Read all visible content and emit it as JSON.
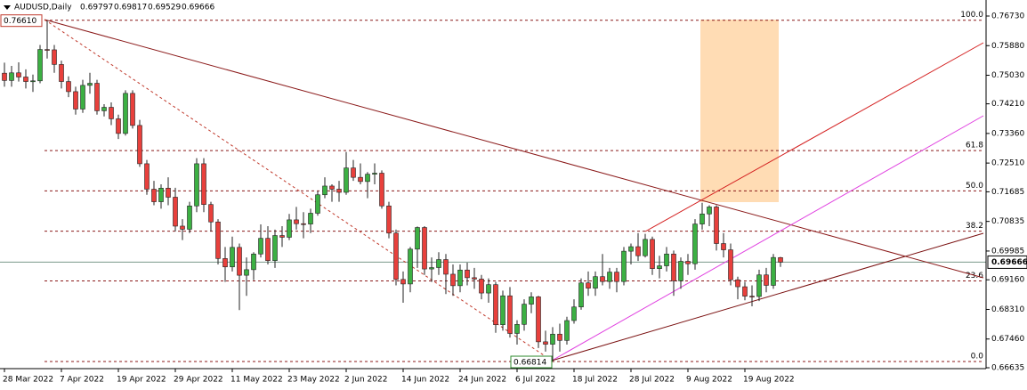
{
  "chart_data": {
    "type": "candlestick",
    "title": "AUDUSD,Daily",
    "header_values": [
      0.69797,
      0.69817,
      0.69529,
      0.69666
    ],
    "up_color": "#3cb043",
    "down_color": "#e8403c",
    "ylim": [
      0.6661,
      0.7719
    ],
    "yticks": [
      {
        "value": 0.7673,
        "label": "0.76730"
      },
      {
        "value": 0.7588,
        "label": "0.75880"
      },
      {
        "value": 0.7503,
        "label": "0.75030"
      },
      {
        "value": 0.7421,
        "label": "0.74210"
      },
      {
        "value": 0.7336,
        "label": "0.73360"
      },
      {
        "value": 0.7251,
        "label": "0.72510"
      },
      {
        "value": 0.71685,
        "label": "0.71685"
      },
      {
        "value": 0.70835,
        "label": "0.70835"
      },
      {
        "value": 0.69985,
        "label": "0.69985"
      },
      {
        "value": 0.6916,
        "label": "0.69160"
      },
      {
        "value": 0.6831,
        "label": "0.68310"
      },
      {
        "value": 0.6746,
        "label": "0.67460"
      },
      {
        "value": 0.66635,
        "label": "0.66635"
      }
    ],
    "xticks": [
      {
        "value": 0,
        "label": "28 Mar 2022"
      },
      {
        "value": 8,
        "label": "7 Apr 2022"
      },
      {
        "value": 16,
        "label": "19 Apr 2022"
      },
      {
        "value": 24,
        "label": "29 Apr 2022"
      },
      {
        "value": 32,
        "label": "11 May 2022"
      },
      {
        "value": 40,
        "label": "23 May 2022"
      },
      {
        "value": 48,
        "label": "2 Jun 2022"
      },
      {
        "value": 56,
        "label": "14 Jun 2022"
      },
      {
        "value": 64,
        "label": "24 Jun 2022"
      },
      {
        "value": 72,
        "label": "6 Jul 2022"
      },
      {
        "value": 80,
        "label": "18 Jul 2022"
      },
      {
        "value": 88,
        "label": "28 Jul 2022"
      },
      {
        "value": 96,
        "label": "9 Aug 2022"
      },
      {
        "value": 104,
        "label": "19 Aug 2022"
      }
    ],
    "current_price": 0.69666,
    "fib": {
      "high": {
        "value": 0.7661,
        "label": "0.76610"
      },
      "low": 0.66814,
      "levels": [
        {
          "value": 100,
          "label": "100.0"
        },
        61.8,
        {
          "value": 50,
          "label": "50.0"
        },
        38.2,
        23.6,
        {
          "value": 0,
          "label": "0.0"
        }
      ]
    },
    "ohlc": [
      [
        0.7509,
        0.7539,
        0.747,
        0.7488
      ],
      [
        0.7488,
        0.753,
        0.747,
        0.751
      ],
      [
        0.751,
        0.754,
        0.7485,
        0.7498
      ],
      [
        0.7498,
        0.752,
        0.7465,
        0.7485
      ],
      [
        0.7485,
        0.7505,
        0.7455,
        0.7487
      ],
      [
        0.7487,
        0.759,
        0.748,
        0.7577
      ],
      [
        0.7577,
        0.7661,
        0.7551,
        0.7576
      ],
      [
        0.7576,
        0.759,
        0.751,
        0.7534
      ],
      [
        0.7534,
        0.7545,
        0.7465,
        0.7485
      ],
      [
        0.7485,
        0.75,
        0.744,
        0.7456
      ],
      [
        0.7456,
        0.747,
        0.739,
        0.7406
      ],
      [
        0.7406,
        0.749,
        0.7395,
        0.7474
      ],
      [
        0.7474,
        0.751,
        0.745,
        0.748
      ],
      [
        0.748,
        0.749,
        0.739,
        0.7401
      ],
      [
        0.7401,
        0.742,
        0.7385,
        0.7411
      ],
      [
        0.7411,
        0.7425,
        0.736,
        0.7378
      ],
      [
        0.7378,
        0.739,
        0.732,
        0.7336
      ],
      [
        0.7336,
        0.746,
        0.733,
        0.7451
      ],
      [
        0.7451,
        0.746,
        0.735,
        0.7359
      ],
      [
        0.7359,
        0.7375,
        0.724,
        0.7249
      ],
      [
        0.7249,
        0.726,
        0.716,
        0.7176
      ],
      [
        0.7176,
        0.72,
        0.713,
        0.714
      ],
      [
        0.714,
        0.719,
        0.712,
        0.7179
      ],
      [
        0.7179,
        0.721,
        0.713,
        0.7153
      ],
      [
        0.7153,
        0.718,
        0.7055,
        0.707
      ],
      [
        0.707,
        0.709,
        0.703,
        0.7061
      ],
      [
        0.7061,
        0.714,
        0.705,
        0.7128
      ],
      [
        0.7128,
        0.7265,
        0.711,
        0.7249
      ],
      [
        0.7249,
        0.7265,
        0.711,
        0.7132
      ],
      [
        0.7132,
        0.714,
        0.7055,
        0.7082
      ],
      [
        0.7082,
        0.709,
        0.696,
        0.6977
      ],
      [
        0.6977,
        0.701,
        0.691,
        0.6953
      ],
      [
        0.6953,
        0.704,
        0.694,
        0.7009
      ],
      [
        0.7009,
        0.702,
        0.6829,
        0.6929
      ],
      [
        0.6929,
        0.698,
        0.687,
        0.6945
      ],
      [
        0.6945,
        0.6995,
        0.6915,
        0.699
      ],
      [
        0.699,
        0.7075,
        0.698,
        0.7035
      ],
      [
        0.7035,
        0.707,
        0.696,
        0.6971
      ],
      [
        0.6971,
        0.706,
        0.695,
        0.7043
      ],
      [
        0.7043,
        0.707,
        0.701,
        0.7038
      ],
      [
        0.7038,
        0.7105,
        0.703,
        0.7088
      ],
      [
        0.7088,
        0.7125,
        0.706,
        0.7077
      ],
      [
        0.7077,
        0.711,
        0.7035,
        0.7076
      ],
      [
        0.7076,
        0.712,
        0.705,
        0.7107
      ],
      [
        0.7107,
        0.717,
        0.71,
        0.716
      ],
      [
        0.716,
        0.721,
        0.715,
        0.7185
      ],
      [
        0.7185,
        0.719,
        0.714,
        0.7176
      ],
      [
        0.7176,
        0.72,
        0.714,
        0.7167
      ],
      [
        0.7167,
        0.7283,
        0.716,
        0.7237
      ],
      [
        0.7237,
        0.726,
        0.72,
        0.721
      ],
      [
        0.721,
        0.725,
        0.719,
        0.7198
      ],
      [
        0.7198,
        0.7225,
        0.715,
        0.7219
      ],
      [
        0.7219,
        0.725,
        0.719,
        0.7222
      ],
      [
        0.7222,
        0.723,
        0.712,
        0.7128
      ],
      [
        0.7128,
        0.714,
        0.7035,
        0.705
      ],
      [
        0.705,
        0.706,
        0.69,
        0.6917
      ],
      [
        0.6917,
        0.694,
        0.685,
        0.6904
      ],
      [
        0.6904,
        0.701,
        0.688,
        0.7004
      ],
      [
        0.7004,
        0.7069,
        0.695,
        0.7066
      ],
      [
        0.7066,
        0.707,
        0.693,
        0.6947
      ],
      [
        0.6947,
        0.698,
        0.691,
        0.6951
      ],
      [
        0.6951,
        0.6995,
        0.693,
        0.6974
      ],
      [
        0.6974,
        0.699,
        0.6875,
        0.6932
      ],
      [
        0.6932,
        0.696,
        0.687,
        0.6899
      ],
      [
        0.6899,
        0.696,
        0.688,
        0.6944
      ],
      [
        0.6944,
        0.6965,
        0.69,
        0.6922
      ],
      [
        0.6922,
        0.695,
        0.689,
        0.6918
      ],
      [
        0.6918,
        0.693,
        0.686,
        0.6878
      ],
      [
        0.6878,
        0.692,
        0.685,
        0.6902
      ],
      [
        0.6902,
        0.691,
        0.6764,
        0.6787
      ],
      [
        0.6787,
        0.6885,
        0.677,
        0.687
      ],
      [
        0.687,
        0.6895,
        0.675,
        0.6762
      ],
      [
        0.6762,
        0.68,
        0.673,
        0.6788
      ],
      [
        0.6788,
        0.686,
        0.677,
        0.6846
      ],
      [
        0.6846,
        0.688,
        0.682,
        0.6867
      ],
      [
        0.6867,
        0.687,
        0.672,
        0.6738
      ],
      [
        0.6738,
        0.677,
        0.671,
        0.6731
      ],
      [
        0.6731,
        0.678,
        0.66814,
        0.676
      ],
      [
        0.676,
        0.679,
        0.671,
        0.6742
      ],
      [
        0.6742,
        0.681,
        0.673,
        0.6799
      ],
      [
        0.6799,
        0.686,
        0.679,
        0.6838
      ],
      [
        0.6838,
        0.692,
        0.683,
        0.6907
      ],
      [
        0.6907,
        0.694,
        0.687,
        0.6892
      ],
      [
        0.6892,
        0.694,
        0.687,
        0.6925
      ],
      [
        0.6925,
        0.699,
        0.69,
        0.6911
      ],
      [
        0.6911,
        0.695,
        0.689,
        0.6938
      ],
      [
        0.6938,
        0.695,
        0.688,
        0.6911
      ],
      [
        0.6911,
        0.701,
        0.69,
        0.6998
      ],
      [
        0.6998,
        0.702,
        0.696,
        0.7011
      ],
      [
        0.7011,
        0.705,
        0.697,
        0.6985
      ],
      [
        0.6985,
        0.7048,
        0.698,
        0.7032
      ],
      [
        0.7032,
        0.704,
        0.693,
        0.6948
      ],
      [
        0.6948,
        0.6985,
        0.692,
        0.6956
      ],
      [
        0.6956,
        0.701,
        0.694,
        0.699
      ],
      [
        0.699,
        0.7,
        0.687,
        0.6913
      ],
      [
        0.6913,
        0.698,
        0.689,
        0.6969
      ],
      [
        0.6969,
        0.699,
        0.693,
        0.6962
      ],
      [
        0.6962,
        0.709,
        0.6945,
        0.7076
      ],
      [
        0.7076,
        0.7137,
        0.706,
        0.7105
      ],
      [
        0.7105,
        0.713,
        0.707,
        0.7125
      ],
      [
        0.7125,
        0.713,
        0.7,
        0.702
      ],
      [
        0.702,
        0.705,
        0.698,
        0.7002
      ],
      [
        0.7002,
        0.702,
        0.69,
        0.6916
      ],
      [
        0.6916,
        0.6925,
        0.686,
        0.6896
      ],
      [
        0.6896,
        0.691,
        0.6857,
        0.6869
      ],
      [
        0.6869,
        0.69,
        0.684,
        0.6868
      ],
      [
        0.6868,
        0.6945,
        0.6855,
        0.693
      ],
      [
        0.693,
        0.695,
        0.688,
        0.69
      ],
      [
        0.69,
        0.699,
        0.689,
        0.698
      ],
      [
        0.69797,
        0.69817,
        0.69529,
        0.69666
      ]
    ]
  }
}
